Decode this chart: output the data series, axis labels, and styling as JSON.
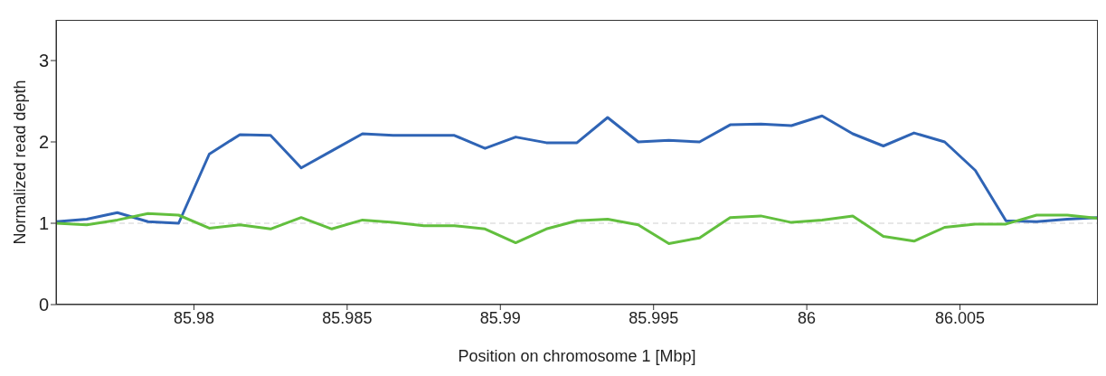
{
  "chart_data": {
    "type": "line",
    "xlabel": "Position on chromosome 1  [Mbp]",
    "ylabel": "Normalized read depth",
    "x": [
      85.9755,
      85.9765,
      85.9775,
      85.9785,
      85.9795,
      85.9805,
      85.9815,
      85.9825,
      85.9835,
      85.9845,
      85.9855,
      85.9865,
      85.9875,
      85.9885,
      85.9895,
      85.9905,
      85.9915,
      85.9925,
      85.9935,
      85.9945,
      85.9955,
      85.9965,
      85.9975,
      85.9985,
      85.9995,
      86.0005,
      86.0015,
      86.0025,
      86.0035,
      86.0045,
      86.0055,
      86.0065,
      86.0075,
      86.0085,
      86.0095
    ],
    "series": [
      {
        "color": "#2f64b5",
        "values": [
          1.02,
          1.05,
          1.13,
          1.02,
          1.0,
          1.85,
          2.09,
          2.08,
          1.68,
          1.89,
          2.1,
          2.08,
          2.08,
          2.08,
          1.92,
          2.06,
          1.99,
          1.99,
          2.3,
          2.0,
          2.02,
          2.0,
          2.21,
          2.22,
          2.2,
          2.32,
          2.1,
          1.95,
          2.11,
          2.0,
          1.65,
          1.03,
          1.02,
          1.05,
          1.07
        ]
      },
      {
        "color": "#62bf3e",
        "values": [
          1.0,
          0.98,
          1.04,
          1.12,
          1.1,
          0.94,
          0.98,
          0.93,
          1.07,
          0.93,
          1.04,
          1.01,
          0.97,
          0.97,
          0.93,
          0.76,
          0.93,
          1.03,
          1.05,
          0.98,
          0.75,
          0.82,
          1.07,
          1.09,
          1.01,
          1.04,
          1.09,
          0.84,
          0.78,
          0.95,
          0.99,
          0.99,
          1.1,
          1.1,
          1.06
        ]
      }
    ],
    "xlim": [
      85.9755,
      86.0095
    ],
    "xticks": [
      85.98,
      85.985,
      85.99,
      85.995,
      86,
      86.005
    ],
    "ylim": [
      0,
      3.5
    ],
    "yticks": [
      0,
      1,
      2,
      3
    ],
    "ref_lines": [
      {
        "axis": "y",
        "value": 1,
        "color": "#d0d0d0",
        "line_style": "dashed"
      }
    ],
    "grid": false,
    "marker": "none",
    "line_style": "solid"
  }
}
